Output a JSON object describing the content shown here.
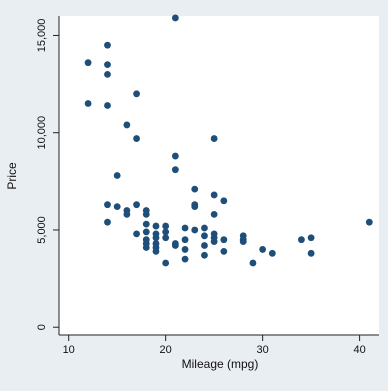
{
  "chart_data": {
    "type": "scatter",
    "title": "",
    "xlabel": "Mileage (mpg)",
    "ylabel": "Price",
    "xlim": [
      9,
      42
    ],
    "ylim": [
      -400,
      16000
    ],
    "xticks": [
      10,
      20,
      30,
      40
    ],
    "xtick_labels": [
      "10",
      "20",
      "30",
      "40"
    ],
    "yticks": [
      0,
      5000,
      10000,
      15000
    ],
    "ytick_labels": [
      "0",
      "5,000",
      "10,000",
      "15,000"
    ],
    "grid": false,
    "legend": false,
    "colors": {
      "marker": "#1f4e79",
      "plot_background": "#ffffff",
      "outer_background": "#e9eef3",
      "axis": "#222222"
    },
    "series": [
      {
        "points": [
          [
            12,
            13600
          ],
          [
            12,
            11500
          ],
          [
            14,
            14500
          ],
          [
            14,
            13500
          ],
          [
            14,
            13000
          ],
          [
            14,
            11400
          ],
          [
            14,
            6300
          ],
          [
            14,
            5400
          ],
          [
            15,
            7800
          ],
          [
            15,
            6200
          ],
          [
            16,
            10400
          ],
          [
            16,
            6000
          ],
          [
            16,
            5800
          ],
          [
            17,
            12000
          ],
          [
            17,
            9700
          ],
          [
            17,
            6300
          ],
          [
            17,
            4800
          ],
          [
            18,
            6000
          ],
          [
            18,
            5800
          ],
          [
            18,
            5300
          ],
          [
            18,
            4900
          ],
          [
            18,
            4500
          ],
          [
            18,
            4300
          ],
          [
            18,
            4100
          ],
          [
            19,
            5200
          ],
          [
            19,
            4800
          ],
          [
            19,
            4600
          ],
          [
            19,
            4300
          ],
          [
            19,
            4100
          ],
          [
            19,
            3900
          ],
          [
            20,
            5200
          ],
          [
            20,
            4900
          ],
          [
            20,
            4600
          ],
          [
            20,
            3300
          ],
          [
            21,
            15900
          ],
          [
            21,
            8800
          ],
          [
            21,
            8100
          ],
          [
            21,
            4300
          ],
          [
            21,
            4200
          ],
          [
            22,
            5100
          ],
          [
            22,
            4500
          ],
          [
            22,
            4000
          ],
          [
            22,
            3500
          ],
          [
            23,
            7100
          ],
          [
            23,
            6300
          ],
          [
            23,
            6200
          ],
          [
            23,
            5000
          ],
          [
            24,
            5100
          ],
          [
            24,
            4700
          ],
          [
            24,
            4200
          ],
          [
            24,
            3700
          ],
          [
            25,
            9700
          ],
          [
            25,
            6800
          ],
          [
            25,
            5800
          ],
          [
            25,
            4800
          ],
          [
            25,
            4600
          ],
          [
            25,
            4400
          ],
          [
            26,
            6500
          ],
          [
            26,
            4500
          ],
          [
            26,
            3900
          ],
          [
            28,
            4700
          ],
          [
            28,
            4500
          ],
          [
            28,
            4400
          ],
          [
            29,
            3300
          ],
          [
            30,
            4000
          ],
          [
            31,
            3800
          ],
          [
            34,
            4500
          ],
          [
            35,
            4600
          ],
          [
            35,
            3800
          ],
          [
            41,
            5400
          ]
        ]
      }
    ]
  }
}
